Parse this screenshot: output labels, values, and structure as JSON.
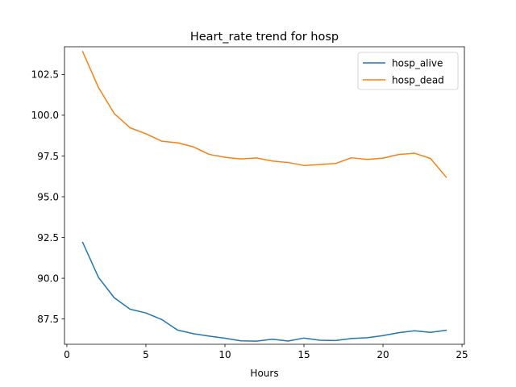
{
  "chart_data": {
    "type": "line",
    "title": "Heart_rate trend for hosp",
    "xlabel": "Hours",
    "ylabel": "",
    "xlim": [
      -0.15,
      25.15
    ],
    "ylim": [
      85.95,
      104.2
    ],
    "xticks": [
      0,
      5,
      10,
      15,
      20,
      25
    ],
    "yticks": [
      87.5,
      90.0,
      92.5,
      95.0,
      97.5,
      100.0,
      102.5
    ],
    "xtick_labels": [
      "0",
      "5",
      "10",
      "15",
      "20",
      "25"
    ],
    "ytick_labels": [
      "87.5",
      "90.0",
      "92.5",
      "95.0",
      "97.5",
      "100.0",
      "102.5"
    ],
    "grid": false,
    "legend_position": "top-right",
    "x": [
      1,
      2,
      3,
      4,
      5,
      6,
      7,
      8,
      9,
      10,
      11,
      12,
      13,
      14,
      15,
      16,
      17,
      18,
      19,
      20,
      21,
      22,
      23,
      24
    ],
    "series": [
      {
        "name": "hosp_alive",
        "color": "#1f77b4",
        "values": [
          92.2,
          90.05,
          88.8,
          88.1,
          87.87,
          87.47,
          86.82,
          86.6,
          86.45,
          86.32,
          86.16,
          86.14,
          86.26,
          86.15,
          86.33,
          86.2,
          86.18,
          86.3,
          86.35,
          86.48,
          86.66,
          86.78,
          86.68,
          86.81
        ]
      },
      {
        "name": "hosp_dead",
        "color": "#ff7f0e",
        "values": [
          103.9,
          101.7,
          100.1,
          99.23,
          98.86,
          98.41,
          98.31,
          98.06,
          97.6,
          97.42,
          97.32,
          97.38,
          97.19,
          97.1,
          96.92,
          96.97,
          97.04,
          97.39,
          97.29,
          97.37,
          97.59,
          97.67,
          97.35,
          96.2
        ]
      }
    ]
  }
}
